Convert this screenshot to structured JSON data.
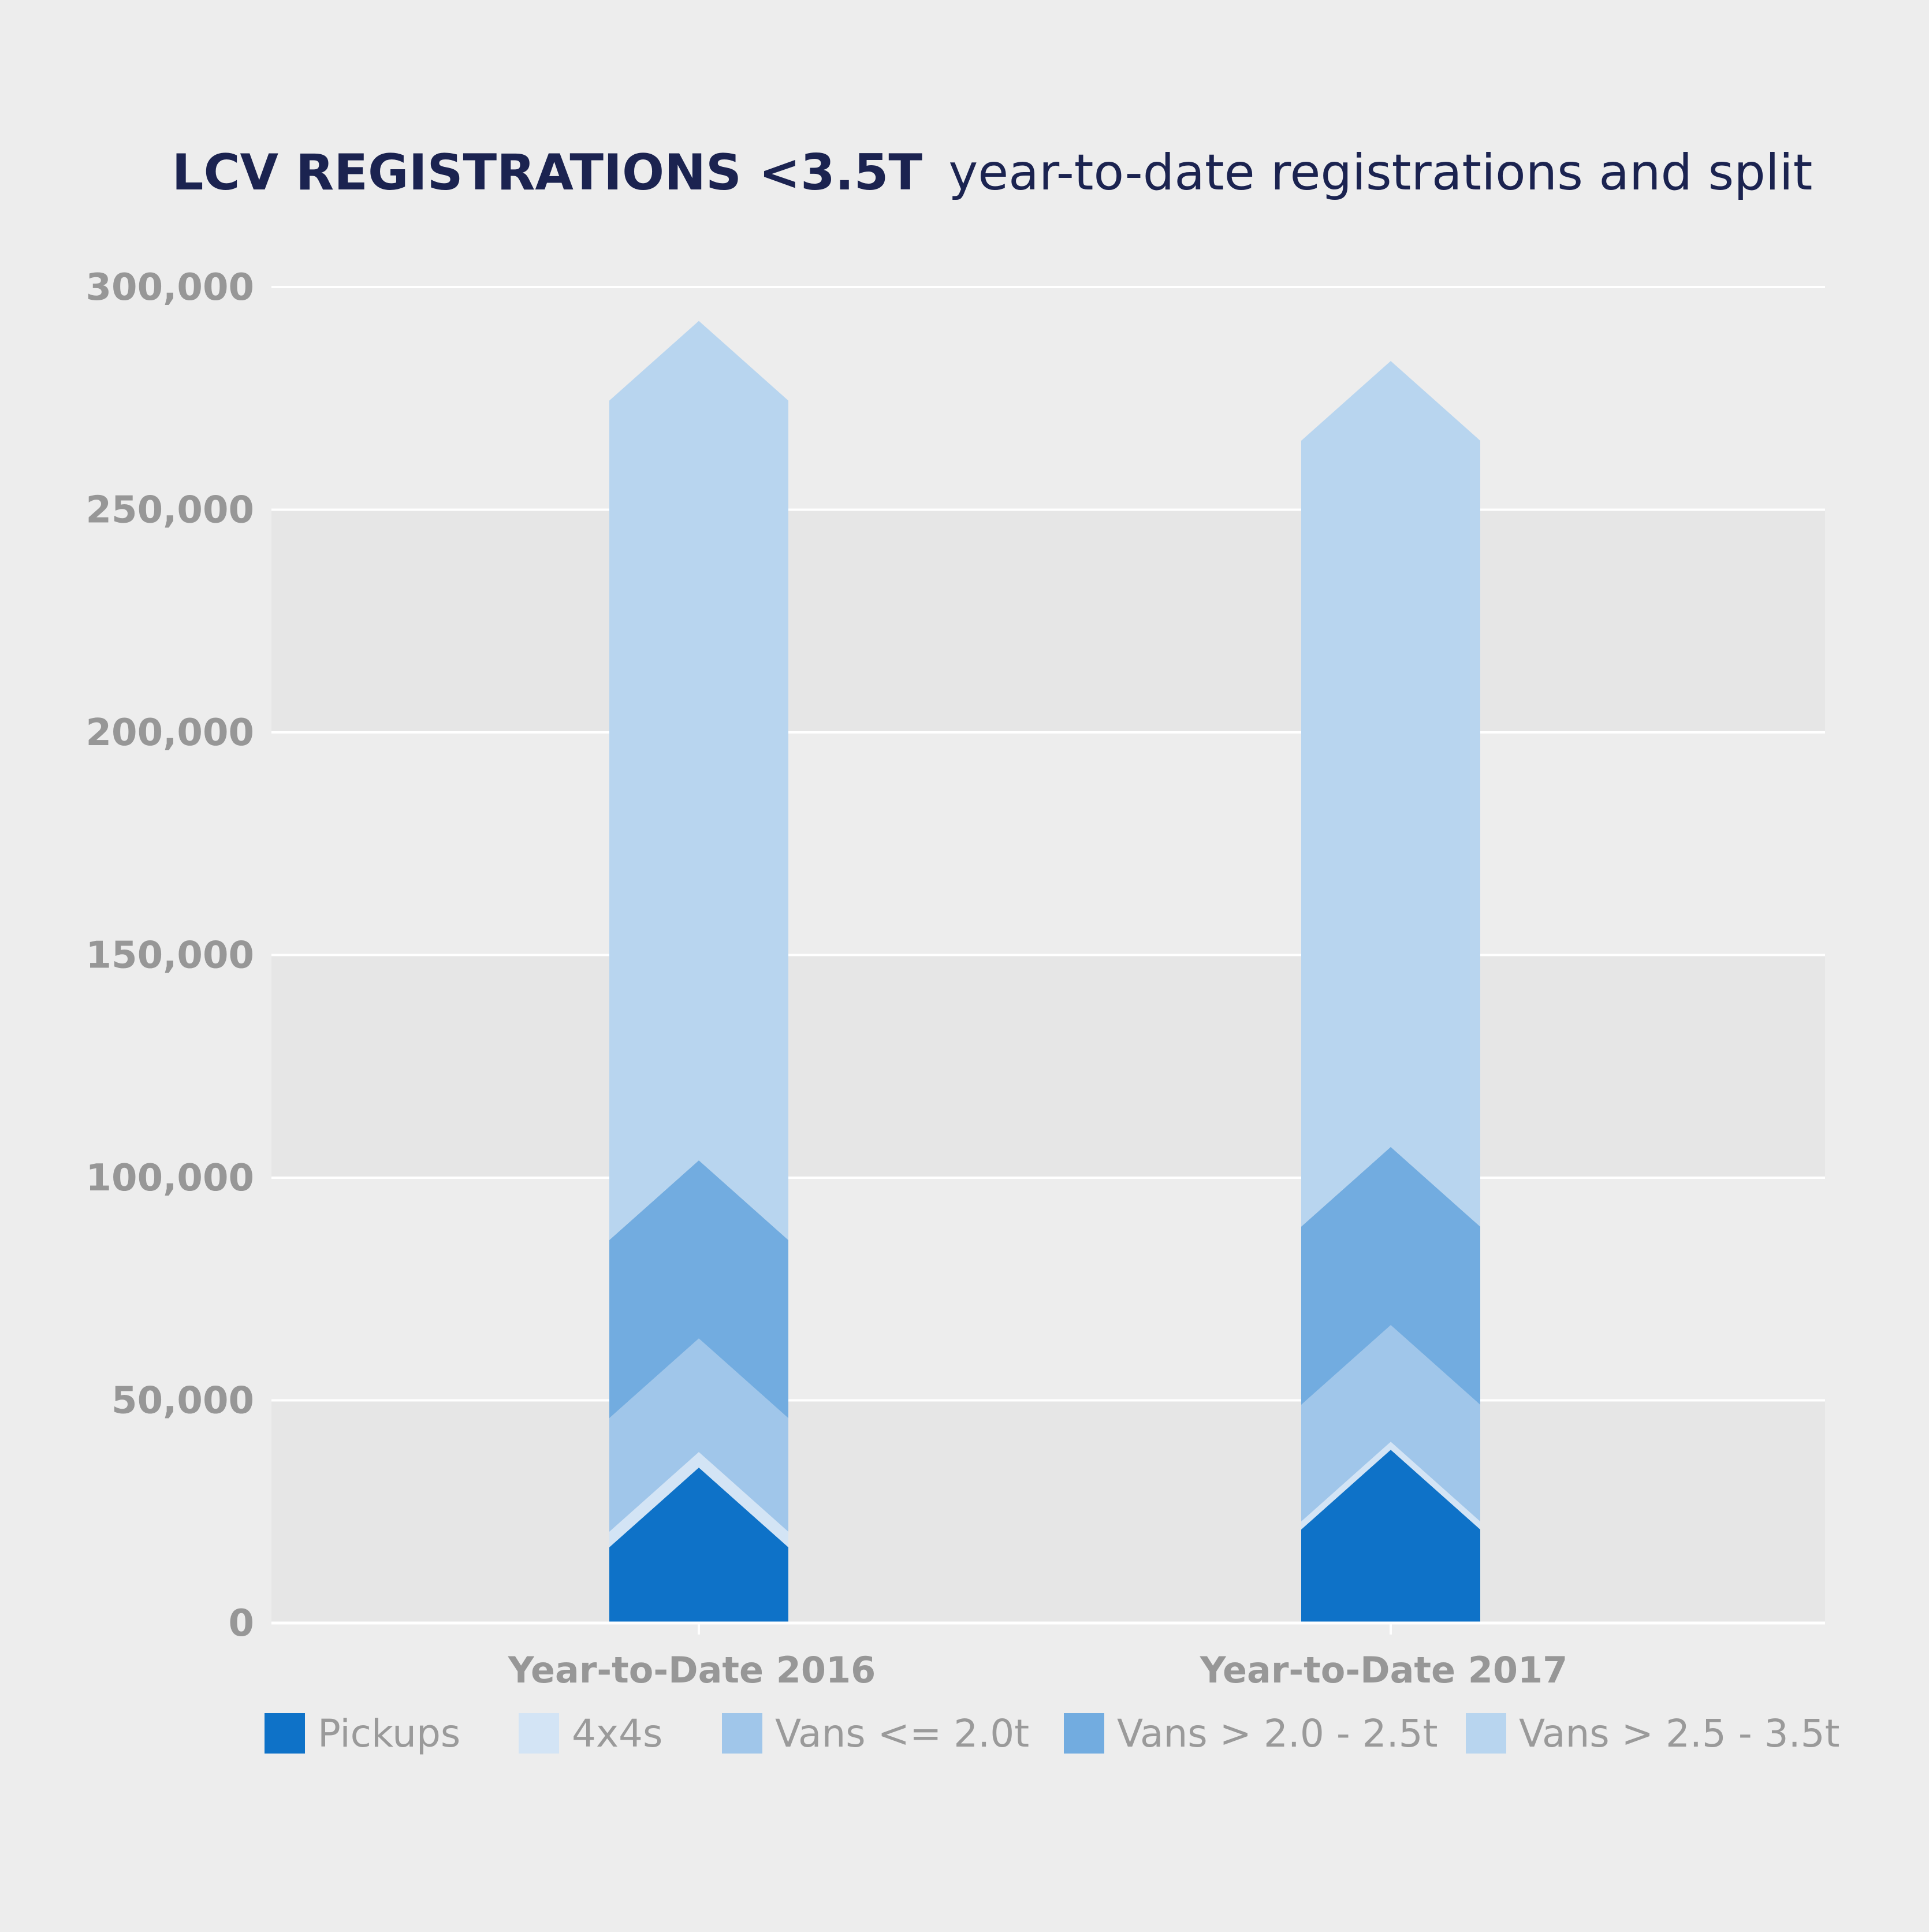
{
  "chart_data": {
    "type": "bar",
    "stacked": true,
    "title": "LCV REGISTRATIONS <3.5T",
    "subtitle": "year-to-date registrations and split",
    "categories": [
      "Year-to-Date 2016",
      "Year-to-Date 2017"
    ],
    "ylim": [
      0,
      300000
    ],
    "yticks": [
      {
        "value": 0,
        "label": "0"
      },
      {
        "value": 50000,
        "label": "50,000"
      },
      {
        "value": 100000,
        "label": "100,000"
      },
      {
        "value": 150000,
        "label": "150,000"
      },
      {
        "value": 200000,
        "label": "200,000"
      },
      {
        "value": 250000,
        "label": "250,000"
      },
      {
        "value": 300000,
        "label": "300,000"
      }
    ],
    "series": [
      {
        "name": "Pickups",
        "color": "#0e72c8",
        "values": [
          17000,
          21000
        ]
      },
      {
        "name": "4x4s",
        "color": "#d3e4f5",
        "values": [
          3500,
          1800
        ]
      },
      {
        "name": "Vans <= 2.0t",
        "color": "#a0c6ea",
        "values": [
          25500,
          26200
        ]
      },
      {
        "name": "Vans > 2.0 - 2.5t",
        "color": "#72ace0",
        "values": [
          40000,
          40000
        ]
      },
      {
        "name": "Vans > 2.5 - 3.5t",
        "color": "#b8d5ef",
        "values": [
          188500,
          176500
        ]
      }
    ],
    "grid": true,
    "legend_position": "bottom"
  }
}
